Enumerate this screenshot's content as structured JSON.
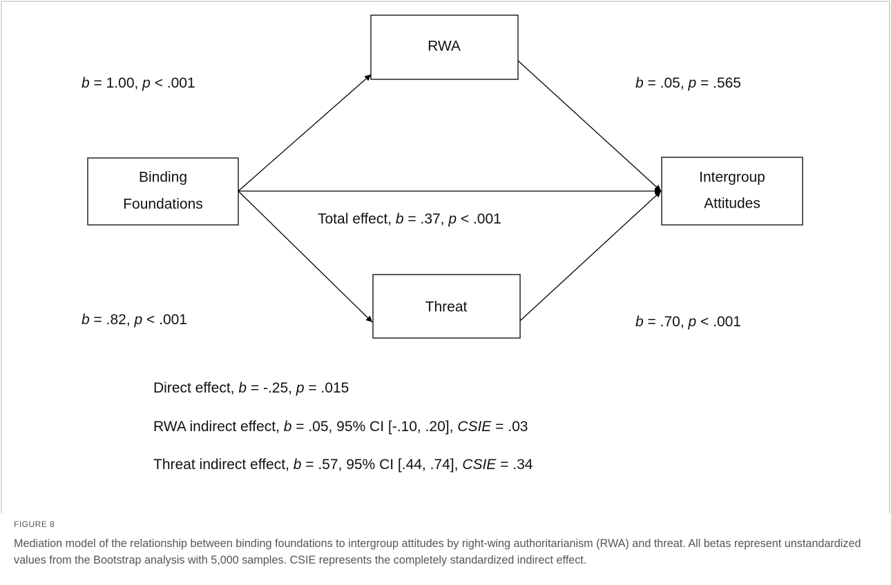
{
  "diagram": {
    "nodes": [
      {
        "label": [
          "RWA"
        ]
      },
      {
        "label": [
          "Binding",
          "Foundations"
        ]
      },
      {
        "label": [
          "Intergroup",
          "Attitudes"
        ]
      },
      {
        "label": [
          "Threat"
        ]
      }
    ],
    "edge_labels": [
      [
        {
          "text": "b",
          "italic": true
        },
        {
          "text": " = 1.00, "
        },
        {
          "text": "p",
          "italic": true
        },
        {
          "text": " < .001"
        }
      ],
      [
        {
          "text": "b",
          "italic": true
        },
        {
          "text": " = .05, "
        },
        {
          "text": "p",
          "italic": true
        },
        {
          "text": " = .565"
        }
      ],
      [
        {
          "text": "Total effect, "
        },
        {
          "text": "b",
          "italic": true
        },
        {
          "text": " = .37, "
        },
        {
          "text": "p",
          "italic": true
        },
        {
          "text": " < .001"
        }
      ],
      [
        {
          "text": "b",
          "italic": true
        },
        {
          "text": " = .82, "
        },
        {
          "text": "p",
          "italic": true
        },
        {
          "text": " < .001"
        }
      ],
      [
        {
          "text": "b",
          "italic": true
        },
        {
          "text": " = .70, "
        },
        {
          "text": "p",
          "italic": true
        },
        {
          "text": " < .001"
        }
      ]
    ],
    "effects": [
      [
        {
          "text": "Direct effect, "
        },
        {
          "text": "b",
          "italic": true
        },
        {
          "text": " = -.25, "
        },
        {
          "text": "p",
          "italic": true
        },
        {
          "text": " = .015"
        }
      ],
      [
        {
          "text": "RWA indirect effect, "
        },
        {
          "text": "b",
          "italic": true
        },
        {
          "text": " = .05, 95% CI [-.10, .20], "
        },
        {
          "text": "CSIE",
          "italic": true
        },
        {
          "text": " = .03"
        }
      ],
      [
        {
          "text": "Threat indirect effect, "
        },
        {
          "text": "b",
          "italic": true
        },
        {
          "text": " = .57, 95% CI [.44, .74], "
        },
        {
          "text": "CSIE",
          "italic": true
        },
        {
          "text": " = .34"
        }
      ]
    ]
  },
  "figure": {
    "label": "FIGURE 8",
    "caption": "Mediation model of the relationship between binding foundations to intergroup attitudes by right-wing authoritarianism (RWA) and threat. All betas represent unstandardized values from the Bootstrap analysis with 5,000 samples. CSIE represents the completely standardized indirect effect."
  }
}
